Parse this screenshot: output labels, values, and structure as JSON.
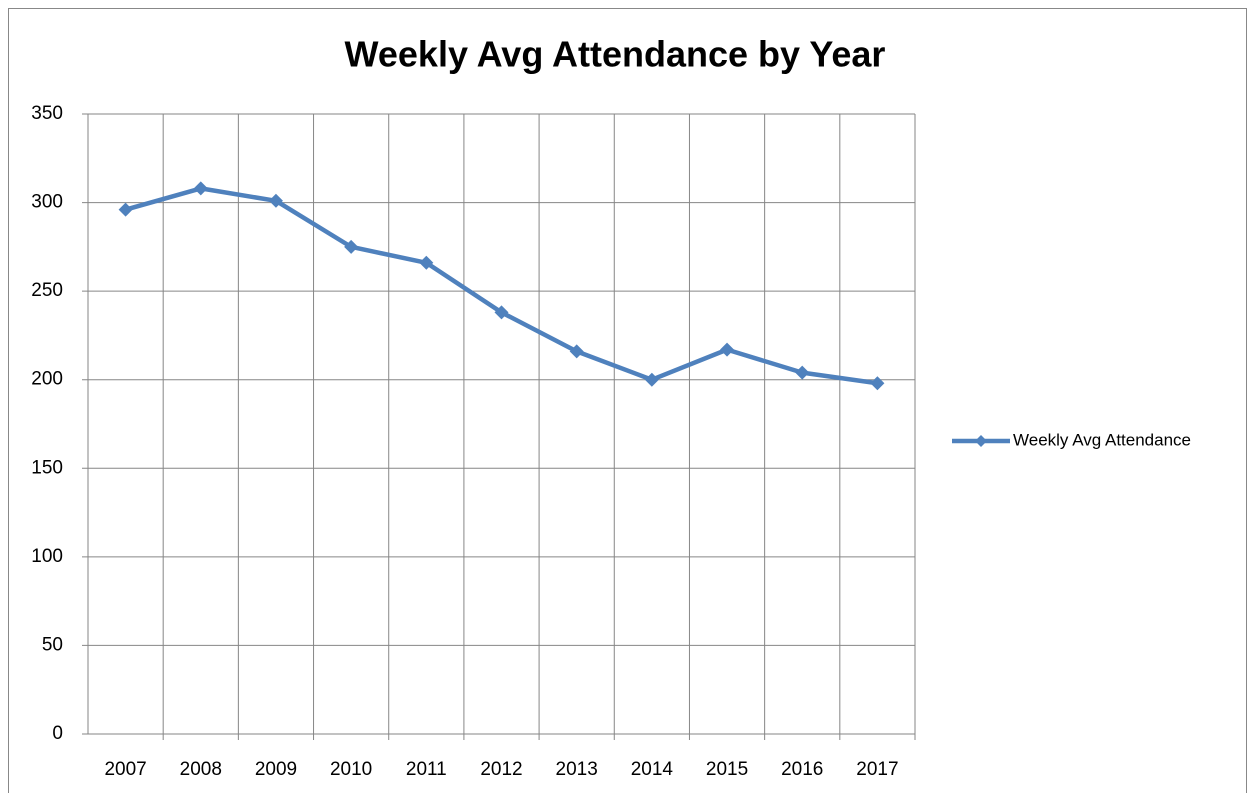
{
  "chart_data": {
    "type": "line",
    "title": "Weekly Avg Attendance by Year",
    "categories": [
      "2007",
      "2008",
      "2009",
      "2010",
      "2011",
      "2012",
      "2013",
      "2014",
      "2015",
      "2016",
      "2017"
    ],
    "series": [
      {
        "name": "Weekly Avg Attendance",
        "color": "#4f81bd",
        "values": [
          296,
          308,
          301,
          275,
          266,
          238,
          216,
          200,
          217,
          204,
          198
        ]
      }
    ],
    "ylim": [
      0,
      350
    ],
    "yticks": [
      0,
      50,
      100,
      150,
      200,
      250,
      300,
      350
    ],
    "grid": true,
    "legend": "right"
  }
}
